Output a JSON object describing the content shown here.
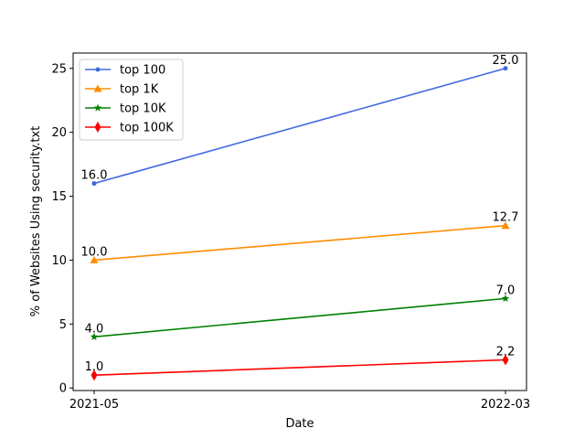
{
  "chart_data": {
    "type": "line",
    "title": "",
    "xlabel": "Date",
    "ylabel": "% of Websites Using security.txt",
    "x": [
      "2021-05",
      "2022-03"
    ],
    "ylim": [
      -0.2,
      26.2
    ],
    "yticks": [
      0,
      5,
      10,
      15,
      20,
      25
    ],
    "legend_position": "top-left",
    "grid": false,
    "series": [
      {
        "name": "top 100",
        "values": [
          16.0,
          25.0
        ],
        "labels": [
          "16.0",
          "25.0"
        ],
        "color": "#4169e1",
        "marker": "point"
      },
      {
        "name": "top 1K",
        "values": [
          10.0,
          12.7
        ],
        "labels": [
          "10.0",
          "12.7"
        ],
        "color": "#ff8c00",
        "marker": "triangle"
      },
      {
        "name": "top 10K",
        "values": [
          4.0,
          7.0
        ],
        "labels": [
          "4.0",
          "7.0"
        ],
        "color": "#008000",
        "marker": "star"
      },
      {
        "name": "top 100K",
        "values": [
          1.0,
          2.2
        ],
        "labels": [
          "1.0",
          "2.2"
        ],
        "color": "#ff0000",
        "marker": "diamond"
      }
    ]
  }
}
